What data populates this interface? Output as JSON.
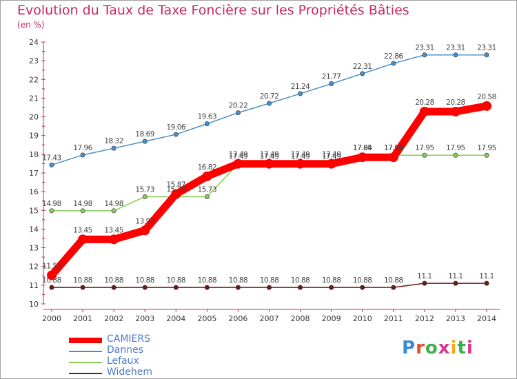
{
  "title": "Evolution du Taux de Taxe Foncière sur les Propriétés Bâties",
  "unit": "(en %)",
  "logo_text": "Proxiti",
  "chart_data": {
    "type": "line",
    "title": "Evolution du Taux de Taxe Foncière sur les Propriétés Bâties",
    "ylabel": "(en %)",
    "xlabel": "",
    "ylim": [
      10,
      24
    ],
    "y_ticks": [
      "10",
      "11",
      "12",
      "13",
      "14",
      "15",
      "16",
      "17",
      "18",
      "19",
      "20",
      "21",
      "22",
      "23",
      "24"
    ],
    "x": [
      "2000",
      "2001",
      "2002",
      "2003",
      "2004",
      "2005",
      "2006",
      "2007",
      "2008",
      "2009",
      "2010",
      "2011",
      "2012",
      "2013",
      "2014"
    ],
    "grid": false,
    "legend_placement": "bottom-left",
    "series": [
      {
        "name": "CAMIERS",
        "color": "#ff0000",
        "values": [
          11.53,
          13.45,
          13.45,
          13.93,
          15.87,
          16.82,
          17.49,
          17.49,
          17.49,
          17.49,
          17.84,
          17.84,
          20.28,
          20.28,
          20.58
        ],
        "labels": [
          "11.53",
          "13.45",
          "13.45",
          "13.93",
          "15.87",
          "16.82",
          "17.49",
          "17.49",
          "17.49",
          "17.49",
          "17.84",
          "17.84",
          "20.28",
          "20.28",
          "20.58"
        ]
      },
      {
        "name": "Dannes",
        "color": "#4a90c8",
        "values": [
          17.43,
          17.96,
          18.32,
          18.69,
          19.06,
          19.63,
          20.22,
          20.72,
          21.24,
          21.77,
          22.31,
          22.86,
          23.31,
          23.31,
          23.31
        ],
        "labels": [
          "17.43",
          "17.96",
          "18.32",
          "18.69",
          "19.06",
          "19.63",
          "20.22",
          "20.72",
          "21.24",
          "21.77",
          "22.31",
          "22.86",
          "23.31",
          "23.31",
          "23.31"
        ]
      },
      {
        "name": "Lefaux",
        "color": "#88cc55",
        "values": [
          14.98,
          14.98,
          14.98,
          15.73,
          15.73,
          15.73,
          17.49,
          17.49,
          17.49,
          17.49,
          17.95,
          17.95,
          17.95,
          17.95,
          17.95
        ],
        "labels": [
          "14.98",
          "14.98",
          "14.98",
          "15.73",
          "15.73",
          "15.73",
          "17.49",
          "17.49",
          "17.49",
          "17.49",
          "17.95",
          "17.95",
          "17.95",
          "17.95",
          "17.95"
        ]
      },
      {
        "name": "Widehem",
        "color": "#6b1a1a",
        "values": [
          10.88,
          10.88,
          10.88,
          10.88,
          10.88,
          10.88,
          10.88,
          10.88,
          10.88,
          10.88,
          10.88,
          10.88,
          11.1,
          11.1,
          11.1
        ],
        "labels": [
          "10.88",
          "10.88",
          "10.88",
          "10.88",
          "10.88",
          "10.88",
          "10.88",
          "10.88",
          "10.88",
          "10.88",
          "10.88",
          "10.88",
          "11.1",
          "11.1",
          "11.1"
        ]
      }
    ]
  }
}
